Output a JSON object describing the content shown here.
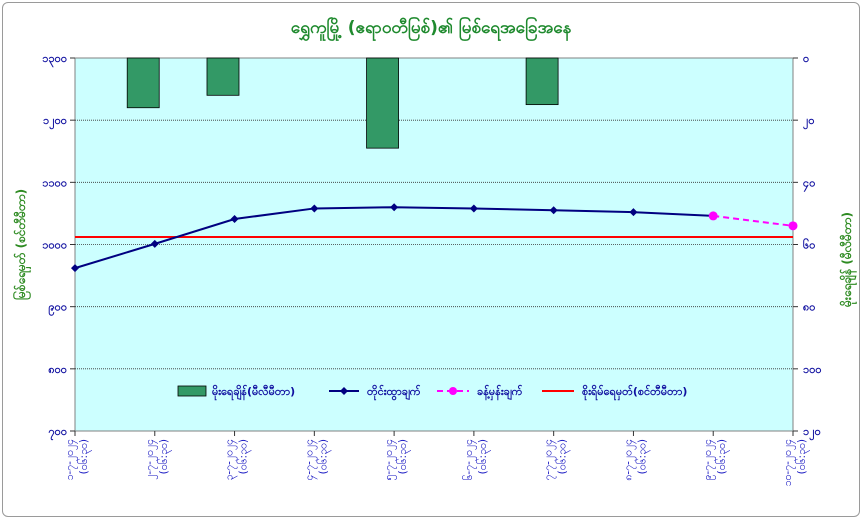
{
  "chart_data": {
    "type": "bar+line",
    "title": "ရွှေကူမြို့ (ဧရာဝတီမြစ်)၏ မြစ်ရေအခြေအနေ",
    "ylabel_left": "မြစ်ရေမှတ် (စင်တီမီတာ)",
    "ylabel_right": "မိုးရေချိန် (မီလီမီတာ)",
    "ylim_left": [
      700,
      1300
    ],
    "yticks_left": [
      "၁၃၀၀",
      "၁၂၀၀",
      "၁၁၀၀",
      "၁၀၀၀",
      "၉၀၀",
      "၈၀၀",
      "၇၀၀"
    ],
    "ylim_right": [
      0,
      120
    ],
    "yticks_right": [
      "၀",
      "၂၀",
      "၄၀",
      "၆၀",
      "၈၀",
      "၁၀၀",
      "၁၂၀"
    ],
    "categories": [
      "၁-၇-၂၀၂၄ (၀၆:၃၀)",
      "၂-၇-၂၀၂၄ (၀၆:၃၀)",
      "၃-၇-၂၀၂၄ (၀၆:၃၀)",
      "၄-၇-၂၀၂၄ (၀၆:၃၀)",
      "၅-၇-၂၀၂၄ (၀၆:၃၀)",
      "၆-၇-၂၀၂၄ (၀၆:၃၀)",
      "၇-၇-၂၀၂၄ (၀၆:၃၀)",
      "၈-၇-၂၀၂၄ (၀၆:၃၀)",
      "၉-၇-၂၀၂၄ (၀၆:၃၀)",
      "၁၀-၇-၂၀၂၄ (၀၆:၃၀)"
    ],
    "legend": [
      "မိုးရေချိန်(မီလီမီတာ)",
      "တိုင်းထွာချက်",
      "ခန့်မှန်းချက်",
      "စိုးရိမ်ရေမှတ်(စင်တီမီတာ)"
    ],
    "series": [
      {
        "name": "မိုးရေချိန်(မီလီမီတာ)",
        "type": "bar",
        "axis": "right",
        "values": [
          0,
          16,
          12,
          0,
          29,
          0,
          15,
          0,
          0,
          0
        ]
      },
      {
        "name": "တိုင်းထွာချက်",
        "type": "line",
        "axis": "left",
        "values": [
          962,
          1001,
          1041,
          1058,
          1060,
          1058,
          1055,
          1052,
          1046,
          null
        ]
      },
      {
        "name": "ခန့်မှန်းချက်",
        "type": "line-dashed",
        "axis": "left",
        "values": [
          null,
          null,
          null,
          null,
          null,
          null,
          null,
          null,
          1046,
          1030
        ]
      },
      {
        "name": "စိုးရိမ်ရေမှတ်(စင်တီမီတာ)",
        "type": "hline",
        "axis": "left",
        "value": 1012
      }
    ],
    "colors": {
      "plot_bg": "#ccffff",
      "bar": "#339966",
      "observed": "#000080",
      "forecast": "#ff00ff",
      "danger": "#ff0000"
    },
    "legend_position": "bottom-center",
    "grid": true
  }
}
